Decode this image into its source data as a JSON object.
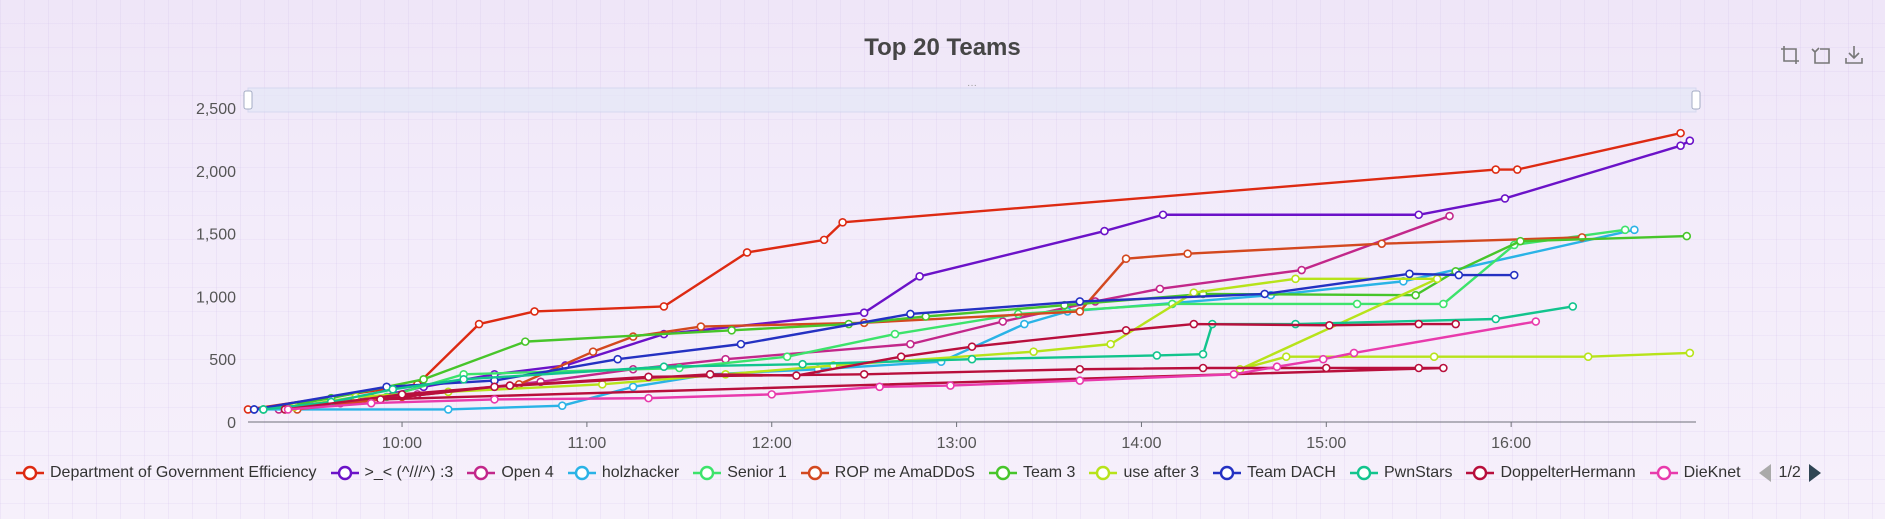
{
  "title": "Top 20 Teams",
  "pager": {
    "text": "1/2"
  },
  "toolbox": [
    "zoom-icon",
    "zoom-reset-icon",
    "download-icon"
  ],
  "chart_data": {
    "type": "line",
    "title": "Top 20 Teams",
    "xlabel": "",
    "ylabel": "",
    "x_type": "time",
    "xlim": [
      "09:10",
      "17:00"
    ],
    "ylim": [
      0,
      2500
    ],
    "x_ticks": [
      "10:00",
      "11:00",
      "12:00",
      "13:00",
      "14:00",
      "15:00",
      "16:00"
    ],
    "y_ticks": [
      "0",
      "500",
      "1,000",
      "1,500",
      "2,000",
      "2,500"
    ],
    "y_tick_values": [
      0,
      500,
      1000,
      1500,
      2000,
      2500
    ],
    "grid": false,
    "legend_position": "bottom",
    "series": [
      {
        "name": "Department of Government Efficiency",
        "color": "#dd2a12",
        "points": [
          [
            "09:10",
            100
          ],
          [
            "10:05",
            300
          ],
          [
            "10:25",
            780
          ],
          [
            "10:43",
            880
          ],
          [
            "11:25",
            920
          ],
          [
            "11:52",
            1350
          ],
          [
            "12:17",
            1450
          ],
          [
            "12:23",
            1590
          ],
          [
            "15:55",
            2010
          ],
          [
            "16:02",
            2010
          ],
          [
            "16:55",
            2300
          ]
        ]
      },
      {
        "name": ">_< (^///^) :3",
        "color": "#6b12c8",
        "points": [
          [
            "09:12",
            100
          ],
          [
            "09:50",
            190
          ],
          [
            "10:07",
            280
          ],
          [
            "10:30",
            380
          ],
          [
            "10:53",
            450
          ],
          [
            "11:25",
            700
          ],
          [
            "12:30",
            870
          ],
          [
            "12:48",
            1160
          ],
          [
            "13:48",
            1520
          ],
          [
            "14:07",
            1650
          ],
          [
            "15:30",
            1650
          ],
          [
            "15:58",
            1780
          ],
          [
            "16:55",
            2200
          ],
          [
            "16:58",
            2240
          ]
        ]
      },
      {
        "name": "Open 4",
        "color": "#c2278a",
        "points": [
          [
            "09:20",
            100
          ],
          [
            "09:40",
            150
          ],
          [
            "10:05",
            220
          ],
          [
            "10:45",
            320
          ],
          [
            "11:15",
            420
          ],
          [
            "11:45",
            500
          ],
          [
            "12:45",
            620
          ],
          [
            "13:15",
            800
          ],
          [
            "13:45",
            960
          ],
          [
            "14:06",
            1060
          ],
          [
            "14:52",
            1210
          ],
          [
            "15:40",
            1640
          ]
        ]
      },
      {
        "name": "holzhacker",
        "color": "#2ab3e6",
        "points": [
          [
            "09:12",
            100
          ],
          [
            "10:15",
            100
          ],
          [
            "10:52",
            130
          ],
          [
            "11:15",
            280
          ],
          [
            "11:40",
            380
          ],
          [
            "12:15",
            420
          ],
          [
            "12:55",
            480
          ],
          [
            "13:22",
            780
          ],
          [
            "13:36",
            880
          ],
          [
            "14:42",
            1010
          ],
          [
            "15:25",
            1120
          ],
          [
            "16:40",
            1530
          ]
        ]
      },
      {
        "name": "Senior 1",
        "color": "#3de36b",
        "points": [
          [
            "09:15",
            100
          ],
          [
            "09:55",
            200
          ],
          [
            "10:20",
            380
          ],
          [
            "11:30",
            430
          ],
          [
            "12:05",
            520
          ],
          [
            "12:40",
            700
          ],
          [
            "13:20",
            860
          ],
          [
            "14:10",
            940
          ],
          [
            "15:10",
            940
          ],
          [
            "15:38",
            940
          ],
          [
            "16:01",
            1410
          ],
          [
            "16:37",
            1530
          ]
        ]
      },
      {
        "name": "ROP me AmaDDoS",
        "color": "#d3481f",
        "points": [
          [
            "09:26",
            100
          ],
          [
            "10:00",
            200
          ],
          [
            "10:38",
            300
          ],
          [
            "11:02",
            560
          ],
          [
            "11:15",
            680
          ],
          [
            "11:37",
            760
          ],
          [
            "12:30",
            790
          ],
          [
            "13:40",
            880
          ],
          [
            "13:55",
            1300
          ],
          [
            "14:15",
            1340
          ],
          [
            "15:18",
            1420
          ],
          [
            "16:23",
            1470
          ]
        ]
      },
      {
        "name": "Team 3",
        "color": "#47c52a",
        "points": [
          [
            "09:15",
            100
          ],
          [
            "09:37",
            190
          ],
          [
            "10:07",
            340
          ],
          [
            "10:40",
            640
          ],
          [
            "11:47",
            730
          ],
          [
            "12:25",
            780
          ],
          [
            "12:50",
            840
          ],
          [
            "13:35",
            930
          ],
          [
            "14:20",
            1020
          ],
          [
            "15:29",
            1010
          ],
          [
            "15:42",
            1200
          ],
          [
            "16:03",
            1440
          ],
          [
            "16:57",
            1480
          ]
        ]
      },
      {
        "name": "use after 3",
        "color": "#b7e31a",
        "points": [
          [
            "09:25",
            120
          ],
          [
            "09:45",
            200
          ],
          [
            "10:15",
            240
          ],
          [
            "11:05",
            300
          ],
          [
            "11:45",
            380
          ],
          [
            "12:20",
            450
          ],
          [
            "13:25",
            560
          ],
          [
            "13:50",
            620
          ],
          [
            "14:17",
            1030
          ],
          [
            "14:50",
            1140
          ],
          [
            "15:36",
            1140
          ],
          [
            "14:32",
            420
          ],
          [
            "14:47",
            520
          ],
          [
            "15:35",
            520
          ],
          [
            "16:25",
            520
          ],
          [
            "16:58",
            550
          ]
        ]
      },
      {
        "name": "Team DACH",
        "color": "#2431c2",
        "points": [
          [
            "09:12",
            100
          ],
          [
            "09:55",
            280
          ],
          [
            "10:30",
            330
          ],
          [
            "11:10",
            500
          ],
          [
            "11:50",
            620
          ],
          [
            "12:45",
            860
          ],
          [
            "13:40",
            960
          ],
          [
            "14:40",
            1020
          ],
          [
            "15:27",
            1180
          ],
          [
            "15:43",
            1170
          ],
          [
            "16:01",
            1170
          ]
        ]
      },
      {
        "name": "PwnStars",
        "color": "#12c48d",
        "points": [
          [
            "09:15",
            100
          ],
          [
            "09:37",
            160
          ],
          [
            "09:57",
            260
          ],
          [
            "10:20",
            340
          ],
          [
            "11:25",
            440
          ],
          [
            "12:10",
            460
          ],
          [
            "13:05",
            500
          ],
          [
            "14:05",
            530
          ],
          [
            "14:20",
            540
          ],
          [
            "14:23",
            780
          ],
          [
            "14:50",
            780
          ],
          [
            "15:55",
            820
          ],
          [
            "16:20",
            920
          ]
        ]
      },
      {
        "name": "DoppelterHermann",
        "color": "#b80f3c",
        "points": [
          [
            "09:22",
            100
          ],
          [
            "10:00",
            220
          ],
          [
            "10:35",
            290
          ],
          [
            "11:20",
            360
          ],
          [
            "12:30",
            380
          ],
          [
            "13:40",
            420
          ],
          [
            "14:20",
            430
          ],
          [
            "15:00",
            430
          ],
          [
            "15:30",
            430
          ],
          [
            "15:38",
            430
          ],
          [
            "09:53",
            180
          ],
          [
            "10:30",
            280
          ],
          [
            "11:40",
            380
          ],
          [
            "12:08",
            370
          ],
          [
            "12:42",
            520
          ],
          [
            "13:05",
            600
          ],
          [
            "13:55",
            730
          ],
          [
            "14:17",
            780
          ],
          [
            "15:01",
            770
          ],
          [
            "15:30",
            780
          ],
          [
            "15:42",
            780
          ]
        ]
      },
      {
        "name": "DieKnet",
        "color": "#e83aac",
        "points": [
          [
            "09:23",
            100
          ],
          [
            "09:50",
            150
          ],
          [
            "10:30",
            180
          ],
          [
            "11:20",
            190
          ],
          [
            "12:00",
            220
          ],
          [
            "12:35",
            280
          ],
          [
            "12:58",
            290
          ],
          [
            "13:40",
            330
          ],
          [
            "14:30",
            380
          ],
          [
            "14:44",
            440
          ],
          [
            "14:59",
            500
          ],
          [
            "15:09",
            550
          ],
          [
            "16:08",
            800
          ]
        ]
      }
    ]
  }
}
